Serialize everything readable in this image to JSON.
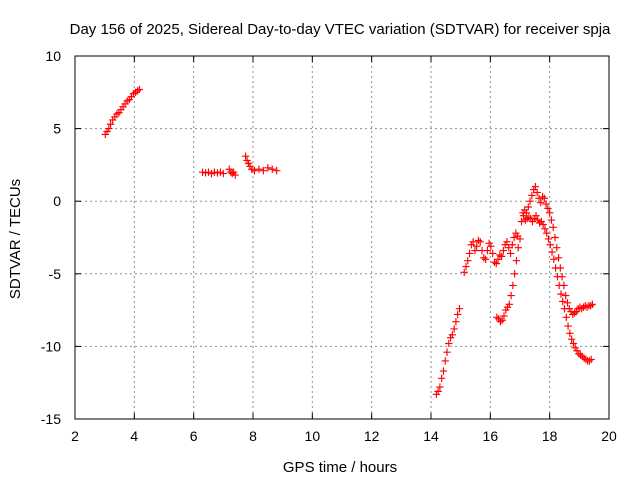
{
  "chart_data": {
    "type": "scatter",
    "title": "Day 156 of 2025, Sidereal Day-to-day VTEC variation (SDTVAR) for receiver spja",
    "xlabel": "GPS time / hours",
    "ylabel": "SDTVAR / TECUs",
    "xlim": [
      2,
      20
    ],
    "ylim": [
      -15,
      10
    ],
    "xticks": [
      2,
      4,
      6,
      8,
      10,
      12,
      14,
      16,
      18,
      20
    ],
    "yticks": [
      -15,
      -10,
      -5,
      0,
      5,
      10
    ],
    "grid": true,
    "colors": {
      "series": "#ff0000",
      "axis": "#000000",
      "grid": "#8f8f8f",
      "background": "#ffffff"
    },
    "series": [
      {
        "name": "SDTVAR",
        "marker": "plus",
        "points": [
          [
            3.02,
            4.6
          ],
          [
            3.08,
            4.8
          ],
          [
            3.14,
            5.0
          ],
          [
            3.2,
            5.3
          ],
          [
            3.27,
            5.6
          ],
          [
            3.34,
            5.8
          ],
          [
            3.41,
            6.0
          ],
          [
            3.48,
            6.1
          ],
          [
            3.55,
            6.3
          ],
          [
            3.62,
            6.5
          ],
          [
            3.69,
            6.7
          ],
          [
            3.76,
            6.9
          ],
          [
            3.83,
            7.0
          ],
          [
            3.9,
            7.2
          ],
          [
            3.97,
            7.4
          ],
          [
            4.04,
            7.5
          ],
          [
            4.11,
            7.6
          ],
          [
            4.17,
            7.7
          ],
          [
            6.3,
            2.0
          ],
          [
            6.4,
            1.95
          ],
          [
            6.5,
            2.0
          ],
          [
            6.6,
            1.9
          ],
          [
            6.7,
            2.0
          ],
          [
            6.8,
            1.95
          ],
          [
            6.9,
            2.0
          ],
          [
            7.0,
            1.9
          ],
          [
            7.2,
            2.2
          ],
          [
            7.25,
            2.0
          ],
          [
            7.3,
            1.9
          ],
          [
            7.35,
            2.0
          ],
          [
            7.4,
            1.8
          ],
          [
            7.75,
            3.1
          ],
          [
            7.8,
            2.8
          ],
          [
            7.85,
            2.6
          ],
          [
            7.9,
            2.4
          ],
          [
            7.96,
            2.2
          ],
          [
            8.05,
            2.1
          ],
          [
            8.2,
            2.2
          ],
          [
            8.35,
            2.1
          ],
          [
            8.5,
            2.3
          ],
          [
            8.65,
            2.2
          ],
          [
            8.8,
            2.1
          ],
          [
            14.18,
            -13.3
          ],
          [
            14.24,
            -13.1
          ],
          [
            14.3,
            -12.8
          ],
          [
            14.36,
            -12.2
          ],
          [
            14.42,
            -11.7
          ],
          [
            14.48,
            -11.0
          ],
          [
            14.54,
            -10.4
          ],
          [
            14.6,
            -9.8
          ],
          [
            14.66,
            -9.4
          ],
          [
            14.72,
            -9.2
          ],
          [
            14.78,
            -8.8
          ],
          [
            14.84,
            -8.3
          ],
          [
            14.9,
            -7.8
          ],
          [
            14.96,
            -7.4
          ],
          [
            15.12,
            -4.9
          ],
          [
            15.18,
            -4.5
          ],
          [
            15.24,
            -4.1
          ],
          [
            15.3,
            -3.6
          ],
          [
            15.36,
            -3.0
          ],
          [
            15.42,
            -2.8
          ],
          [
            15.48,
            -3.4
          ],
          [
            15.54,
            -3.1
          ],
          [
            15.6,
            -2.7
          ],
          [
            15.66,
            -2.8
          ],
          [
            15.72,
            -3.4
          ],
          [
            15.78,
            -3.9
          ],
          [
            15.84,
            -4.0
          ],
          [
            15.9,
            -3.4
          ],
          [
            15.96,
            -2.9
          ],
          [
            16.02,
            -3.1
          ],
          [
            16.08,
            -3.6
          ],
          [
            16.14,
            -4.2
          ],
          [
            16.2,
            -4.3
          ],
          [
            16.26,
            -4.0
          ],
          [
            16.32,
            -3.7
          ],
          [
            16.38,
            -3.8
          ],
          [
            16.44,
            -3.4
          ],
          [
            16.5,
            -3.0
          ],
          [
            16.56,
            -2.8
          ],
          [
            16.62,
            -3.2
          ],
          [
            16.68,
            -3.6
          ],
          [
            16.74,
            -3.0
          ],
          [
            16.8,
            -2.5
          ],
          [
            16.86,
            -2.2
          ],
          [
            16.92,
            -2.4
          ],
          [
            16.22,
            -8.0
          ],
          [
            16.28,
            -8.1
          ],
          [
            16.34,
            -8.3
          ],
          [
            16.4,
            -8.2
          ],
          [
            16.46,
            -7.9
          ],
          [
            16.52,
            -7.5
          ],
          [
            16.58,
            -7.3
          ],
          [
            16.64,
            -7.1
          ],
          [
            16.7,
            -6.5
          ],
          [
            16.76,
            -5.8
          ],
          [
            16.82,
            -5.0
          ],
          [
            16.88,
            -4.1
          ],
          [
            16.94,
            -3.2
          ],
          [
            17.0,
            -2.6
          ],
          [
            17.05,
            -1.4
          ],
          [
            17.1,
            -0.8
          ],
          [
            17.16,
            -0.6
          ],
          [
            17.22,
            -0.8
          ],
          [
            17.28,
            -0.4
          ],
          [
            17.34,
            0.0
          ],
          [
            17.4,
            0.4
          ],
          [
            17.46,
            0.8
          ],
          [
            17.52,
            1.0
          ],
          [
            17.58,
            0.6
          ],
          [
            17.64,
            0.2
          ],
          [
            17.7,
            -0.1
          ],
          [
            17.76,
            0.3
          ],
          [
            17.82,
            0.2
          ],
          [
            17.88,
            -0.2
          ],
          [
            17.94,
            -0.5
          ],
          [
            18.0,
            -0.8
          ],
          [
            18.06,
            -1.3
          ],
          [
            18.12,
            -1.8
          ],
          [
            18.18,
            -2.5
          ],
          [
            18.24,
            -3.2
          ],
          [
            18.3,
            -3.9
          ],
          [
            18.36,
            -4.6
          ],
          [
            18.42,
            -5.2
          ],
          [
            18.48,
            -5.8
          ],
          [
            18.54,
            -6.5
          ],
          [
            18.6,
            -7.0
          ],
          [
            18.66,
            -7.4
          ],
          [
            18.72,
            -7.6
          ],
          [
            18.78,
            -7.8
          ],
          [
            18.84,
            -7.7
          ],
          [
            18.9,
            -7.6
          ],
          [
            18.96,
            -7.4
          ],
          [
            19.02,
            -7.3
          ],
          [
            19.08,
            -7.4
          ],
          [
            19.14,
            -7.3
          ],
          [
            19.2,
            -7.2
          ],
          [
            19.26,
            -7.3
          ],
          [
            19.32,
            -7.2
          ],
          [
            19.38,
            -7.2
          ],
          [
            19.44,
            -7.1
          ],
          [
            17.12,
            -1.0
          ],
          [
            17.18,
            -1.3
          ],
          [
            17.24,
            -1.2
          ],
          [
            17.3,
            -1.1
          ],
          [
            17.36,
            -1.2
          ],
          [
            17.42,
            -1.4
          ],
          [
            17.48,
            -1.2
          ],
          [
            17.54,
            -1.0
          ],
          [
            17.6,
            -1.3
          ],
          [
            17.66,
            -1.5
          ],
          [
            17.72,
            -1.4
          ],
          [
            17.78,
            -1.6
          ],
          [
            17.84,
            -1.9
          ],
          [
            17.9,
            -2.2
          ],
          [
            17.96,
            -2.6
          ],
          [
            18.02,
            -3.0
          ],
          [
            18.08,
            -3.5
          ],
          [
            18.14,
            -4.0
          ],
          [
            18.2,
            -4.6
          ],
          [
            18.26,
            -5.2
          ],
          [
            18.32,
            -5.8
          ],
          [
            18.38,
            -6.4
          ],
          [
            18.44,
            -6.9
          ],
          [
            18.5,
            -7.4
          ],
          [
            18.56,
            -8.0
          ],
          [
            18.62,
            -8.6
          ],
          [
            18.68,
            -9.1
          ],
          [
            18.74,
            -9.5
          ],
          [
            18.8,
            -9.8
          ],
          [
            18.86,
            -10.1
          ],
          [
            18.92,
            -10.3
          ],
          [
            18.98,
            -10.5
          ],
          [
            19.04,
            -10.6
          ],
          [
            19.1,
            -10.7
          ],
          [
            19.16,
            -10.8
          ],
          [
            19.22,
            -10.9
          ],
          [
            19.28,
            -11.0
          ],
          [
            19.34,
            -11.0
          ],
          [
            19.4,
            -10.9
          ]
        ]
      }
    ]
  }
}
